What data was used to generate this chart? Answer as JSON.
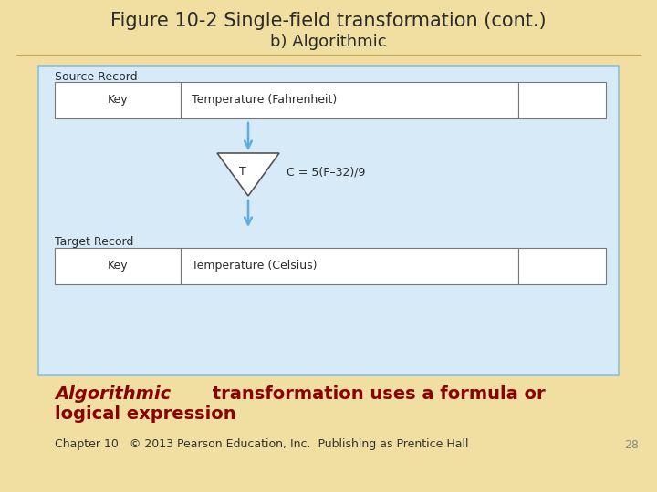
{
  "title": "Figure 10-2 Single-field transformation (cont.)",
  "subtitle": "b) Algorithmic",
  "bg_color": "#F0DFA0",
  "diagram_bg": "#D6EAF8",
  "diagram_border": "#85C1E9",
  "arrow_color": "#5DADE2",
  "source_label": "Source Record",
  "target_label": "Target Record",
  "source_fields": [
    "Key",
    "Temperature (Fahrenheit)",
    ""
  ],
  "target_fields": [
    "Key",
    "Temperature (Celsius)",
    ""
  ],
  "triangle_label": "T",
  "formula": "C = 5(F–32)/9",
  "body_italic": "Algorithmic",
  "body_normal": " transformation uses a formula or",
  "body_line2": "logical expression",
  "footer_text": "Chapter 10   © 2013 Pearson Education, Inc.  Publishing as Prentice Hall",
  "page_number": "28",
  "title_fontsize": 15,
  "subtitle_fontsize": 13,
  "label_fontsize": 9,
  "field_fontsize": 9,
  "body_fontsize": 14,
  "footer_fontsize": 9
}
